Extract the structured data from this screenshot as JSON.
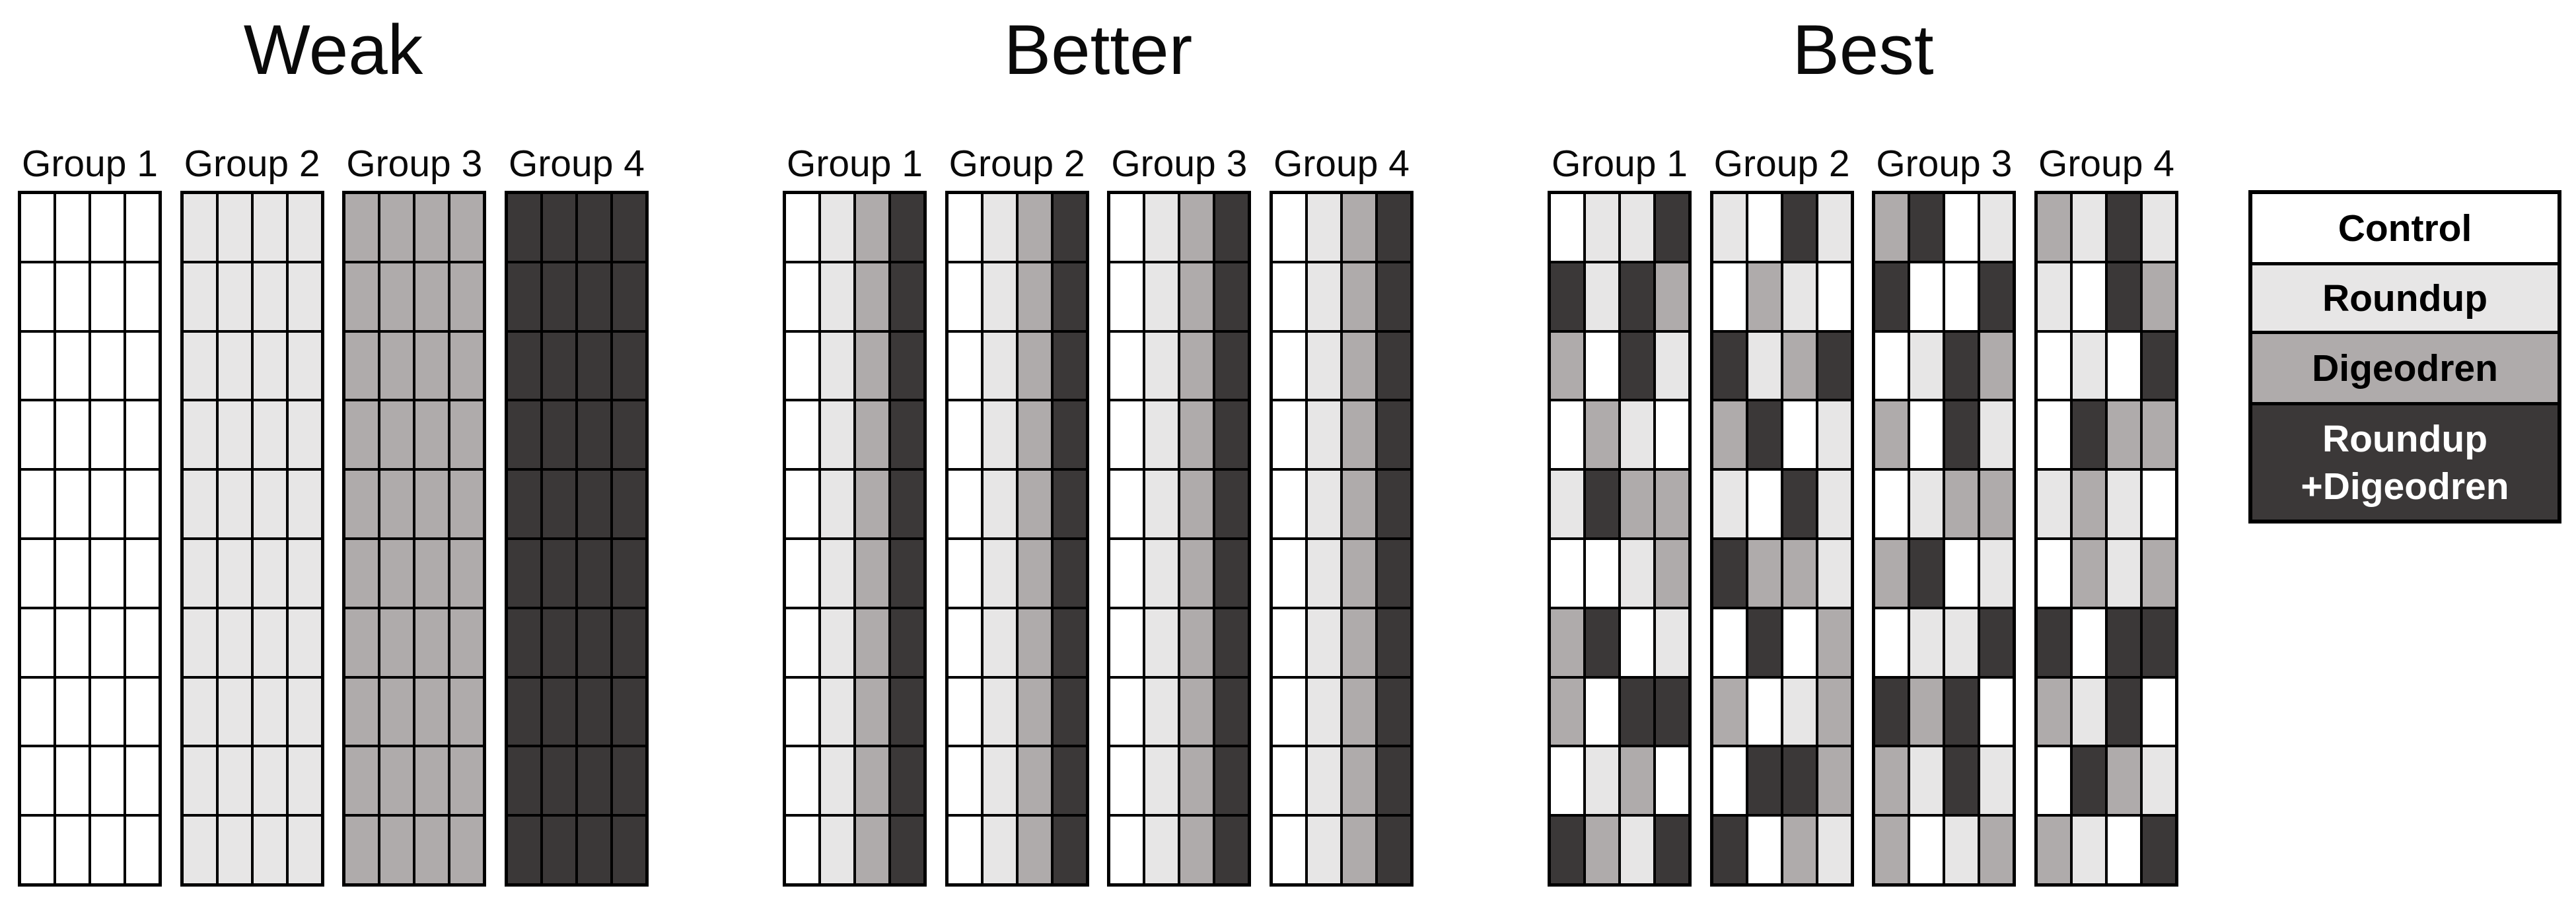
{
  "treatments": {
    "C": {
      "name": "Control",
      "color": "#ffffff",
      "text": "#000000"
    },
    "R": {
      "name": "Roundup",
      "color": "#e7e6e6",
      "text": "#000000"
    },
    "D": {
      "name": "Digeodren",
      "color": "#afabab",
      "text": "#000000"
    },
    "X": {
      "name": "Roundup +Digeodren",
      "color": "#3b3838",
      "text": "#ffffff"
    }
  },
  "sections": [
    {
      "title": "Weak",
      "groups": [
        {
          "label": "Group 1",
          "rows": [
            "CCCC",
            "CCCC",
            "CCCC",
            "CCCC",
            "CCCC",
            "CCCC",
            "CCCC",
            "CCCC",
            "CCCC",
            "CCCC"
          ]
        },
        {
          "label": "Group 2",
          "rows": [
            "RRRR",
            "RRRR",
            "RRRR",
            "RRRR",
            "RRRR",
            "RRRR",
            "RRRR",
            "RRRR",
            "RRRR",
            "RRRR"
          ]
        },
        {
          "label": "Group 3",
          "rows": [
            "DDDD",
            "DDDD",
            "DDDD",
            "DDDD",
            "DDDD",
            "DDDD",
            "DDDD",
            "DDDD",
            "DDDD",
            "DDDD"
          ]
        },
        {
          "label": "Group 4",
          "rows": [
            "XXXX",
            "XXXX",
            "XXXX",
            "XXXX",
            "XXXX",
            "XXXX",
            "XXXX",
            "XXXX",
            "XXXX",
            "XXXX"
          ]
        }
      ]
    },
    {
      "title": "Better",
      "groups": [
        {
          "label": "Group 1",
          "rows": [
            "CRDX",
            "CRDX",
            "CRDX",
            "CRDX",
            "CRDX",
            "CRDX",
            "CRDX",
            "CRDX",
            "CRDX",
            "CRDX"
          ]
        },
        {
          "label": "Group 2",
          "rows": [
            "CRDX",
            "CRDX",
            "CRDX",
            "CRDX",
            "CRDX",
            "CRDX",
            "CRDX",
            "CRDX",
            "CRDX",
            "CRDX"
          ]
        },
        {
          "label": "Group 3",
          "rows": [
            "CRDX",
            "CRDX",
            "CRDX",
            "CRDX",
            "CRDX",
            "CRDX",
            "CRDX",
            "CRDX",
            "CRDX",
            "CRDX"
          ]
        },
        {
          "label": "Group 4",
          "rows": [
            "CRDX",
            "CRDX",
            "CRDX",
            "CRDX",
            "CRDX",
            "CRDX",
            "CRDX",
            "CRDX",
            "CRDX",
            "CRDX"
          ]
        }
      ]
    },
    {
      "title": "Best",
      "groups": [
        {
          "label": "Group 1",
          "rows": [
            "CRRX",
            "XRXD",
            "DCXR",
            "CDRC",
            "RXDD",
            "CCRD",
            "DXCR",
            "DCXX",
            "CRDC",
            "XDRX"
          ]
        },
        {
          "label": "Group 2",
          "rows": [
            "RCXR",
            "CDRC",
            "XRDX",
            "DXCR",
            "RCXR",
            "XDDR",
            "CXCD",
            "DCRD",
            "CXXD",
            "XCDR"
          ]
        },
        {
          "label": "Group 3",
          "rows": [
            "DXCR",
            "XCCX",
            "CRXD",
            "DCXR",
            "CRDD",
            "DXCR",
            "CRRX",
            "XDXC",
            "DRXR",
            "DCRD"
          ]
        },
        {
          "label": "Group 4",
          "rows": [
            "DRXR",
            "RCXD",
            "CRCX",
            "CXDD",
            "RDRC",
            "CDRD",
            "XCXX",
            "DRXC",
            "CXDR",
            "DRCX"
          ]
        }
      ]
    }
  ],
  "legend": {
    "entries": [
      {
        "id": "C",
        "lines": [
          "Control"
        ]
      },
      {
        "id": "R",
        "lines": [
          "Roundup"
        ]
      },
      {
        "id": "D",
        "lines": [
          "Digeodren"
        ]
      },
      {
        "id": "X",
        "lines": [
          "Roundup",
          "+Digeodren"
        ]
      }
    ]
  }
}
